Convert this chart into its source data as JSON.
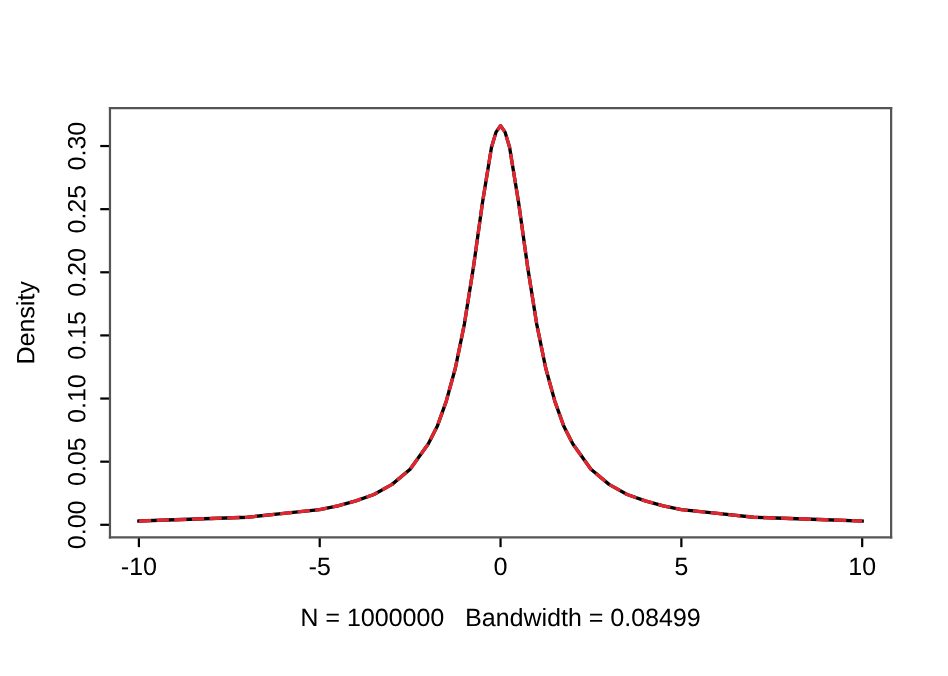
{
  "chart_data": {
    "type": "line",
    "xlabel": "N = 1000000   Bandwidth = 0.08499",
    "ylabel": "Density",
    "x": [
      -10,
      -9,
      -8,
      -7,
      -6,
      -5,
      -4.5,
      -4,
      -3.5,
      -3,
      -2.5,
      -2,
      -1.75,
      -1.5,
      -1.25,
      -1,
      -0.75,
      -0.5,
      -0.25,
      -0.125,
      0,
      0.125,
      0.25,
      0.5,
      0.75,
      1,
      1.25,
      1.5,
      1.75,
      2,
      2.5,
      3,
      3.5,
      4,
      4.5,
      5,
      6,
      7,
      8,
      9,
      10
    ],
    "series": [
      {
        "color": "#000000",
        "line_style": "solid",
        "values": [
          0.003,
          0.004,
          0.005,
          0.006,
          0.009,
          0.012,
          0.015,
          0.019,
          0.024,
          0.032,
          0.044,
          0.064,
          0.078,
          0.098,
          0.124,
          0.159,
          0.204,
          0.255,
          0.299,
          0.311,
          0.316,
          0.311,
          0.299,
          0.255,
          0.204,
          0.159,
          0.124,
          0.098,
          0.078,
          0.064,
          0.044,
          0.032,
          0.024,
          0.019,
          0.015,
          0.012,
          0.009,
          0.006,
          0.005,
          0.004,
          0.003
        ]
      },
      {
        "color": "#e0262f",
        "line_style": "dashed",
        "values": [
          0.003,
          0.004,
          0.005,
          0.006,
          0.009,
          0.012,
          0.015,
          0.019,
          0.024,
          0.032,
          0.044,
          0.064,
          0.078,
          0.098,
          0.124,
          0.159,
          0.204,
          0.255,
          0.299,
          0.311,
          0.316,
          0.311,
          0.299,
          0.255,
          0.204,
          0.159,
          0.124,
          0.098,
          0.078,
          0.064,
          0.044,
          0.032,
          0.024,
          0.019,
          0.015,
          0.012,
          0.009,
          0.006,
          0.005,
          0.004,
          0.003
        ]
      }
    ],
    "xlim": [
      -10.8,
      10.8
    ],
    "ylim": [
      -0.01,
      0.33
    ],
    "xticks": [
      -10,
      -5,
      0,
      5,
      10
    ],
    "yticks": [
      {
        "value": 0,
        "label": "0.00"
      },
      {
        "value": 0.05,
        "label": "0.05"
      },
      {
        "value": 0.1,
        "label": "0.10"
      },
      {
        "value": 0.15,
        "label": "0.15"
      },
      {
        "value": 0.2,
        "label": "0.20"
      },
      {
        "value": 0.25,
        "label": "0.25"
      },
      {
        "value": 0.3,
        "label": "0.30"
      }
    ],
    "grid": false
  }
}
